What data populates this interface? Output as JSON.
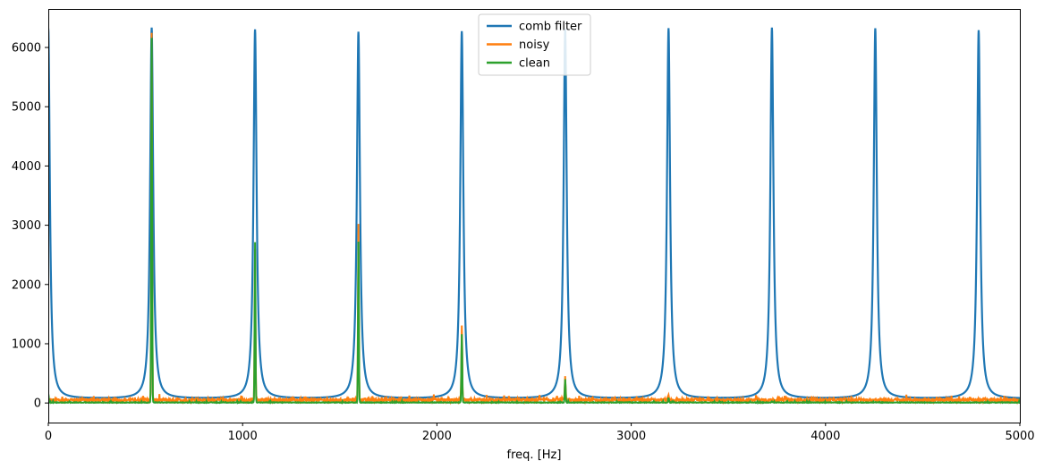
{
  "chart_data": {
    "type": "line",
    "title": "",
    "xlabel": "freq. [Hz]",
    "ylabel": "",
    "xlim": [
      0,
      5000
    ],
    "ylim": [
      -330,
      6650
    ],
    "xticks": [
      0,
      1000,
      2000,
      3000,
      4000,
      5000
    ],
    "yticks": [
      0,
      1000,
      2000,
      3000,
      4000,
      5000,
      6000
    ],
    "xtick_labels": [
      "0",
      "1000",
      "2000",
      "3000",
      "4000",
      "5000"
    ],
    "ytick_labels": [
      "0",
      "1000",
      "2000",
      "3000",
      "4000",
      "5000",
      "6000"
    ],
    "grid": false,
    "legend": "upper-center",
    "series": [
      {
        "name": "comb filter",
        "color": "#1f77b4",
        "fundamental_hz": 532,
        "peaks": [
          {
            "x": 0,
            "y": 6320
          },
          {
            "x": 532,
            "y": 6330
          },
          {
            "x": 1064,
            "y": 6300
          },
          {
            "x": 1596,
            "y": 6260
          },
          {
            "x": 2128,
            "y": 6270
          },
          {
            "x": 2660,
            "y": 6310
          },
          {
            "x": 3192,
            "y": 6320
          },
          {
            "x": 3724,
            "y": 6330
          },
          {
            "x": 4256,
            "y": 6320
          },
          {
            "x": 4788,
            "y": 6290
          }
        ],
        "baseline": 70
      },
      {
        "name": "noisy",
        "color": "#ff7f0e",
        "peaks": [
          {
            "x": 532,
            "y": 6330
          },
          {
            "x": 1064,
            "y": 2850
          },
          {
            "x": 1596,
            "y": 3100
          },
          {
            "x": 2128,
            "y": 1350
          },
          {
            "x": 2660,
            "y": 420
          },
          {
            "x": 3192,
            "y": 90
          }
        ],
        "noise_floor": 60
      },
      {
        "name": "clean",
        "color": "#2ca02c",
        "peaks": [
          {
            "x": 0,
            "y": 160
          },
          {
            "x": 532,
            "y": 6330
          },
          {
            "x": 1064,
            "y": 2870
          },
          {
            "x": 1596,
            "y": 3100
          },
          {
            "x": 2128,
            "y": 1330
          },
          {
            "x": 2660,
            "y": 430
          },
          {
            "x": 3192,
            "y": 90
          },
          {
            "x": 3724,
            "y": 20
          },
          {
            "x": 4256,
            "y": 10
          }
        ],
        "noise_floor": 10
      }
    ]
  }
}
